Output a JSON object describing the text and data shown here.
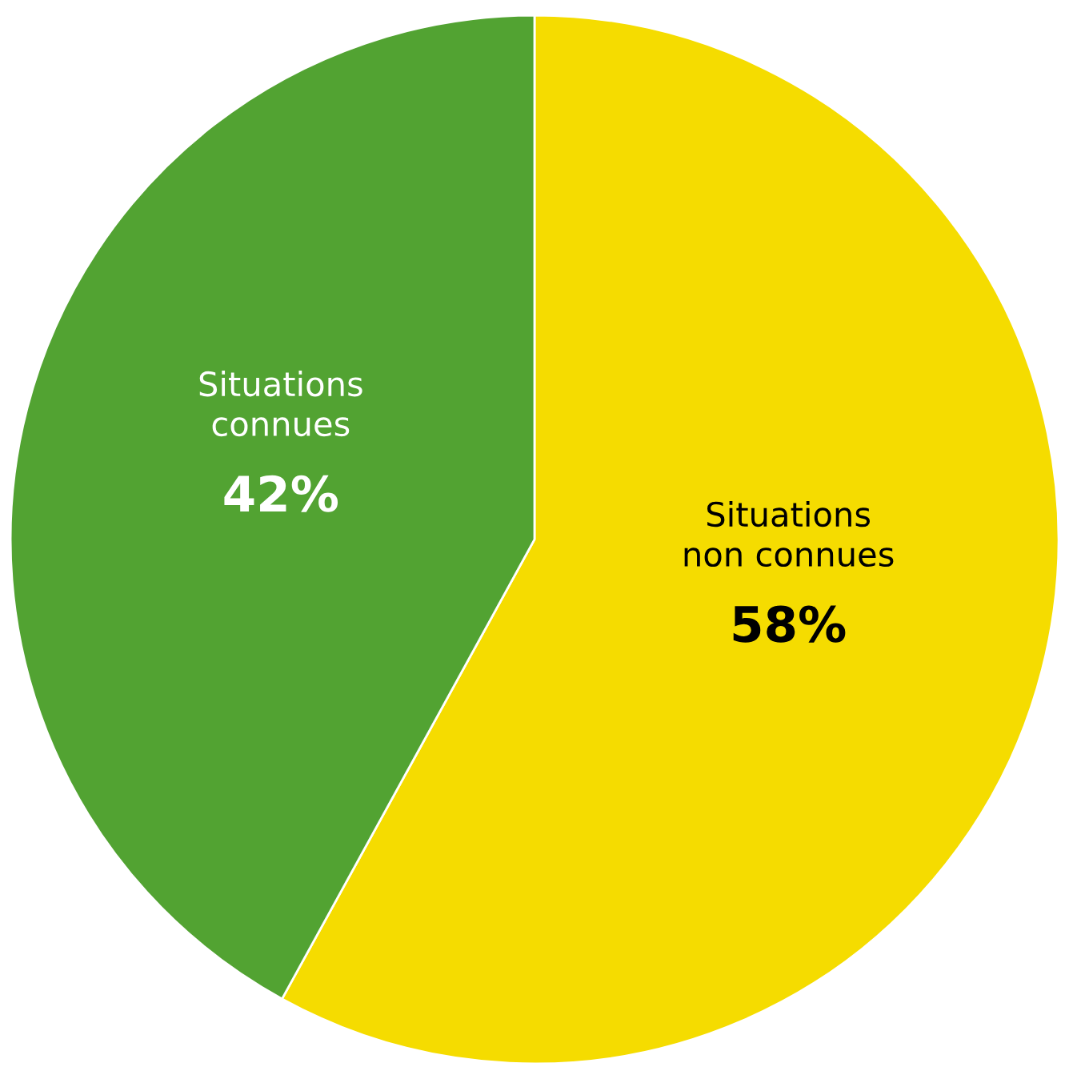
{
  "chart_data": {
    "type": "pie",
    "categories": [
      "Situations\nnon connues",
      "Situations\nconnues"
    ],
    "values": [
      58,
      42
    ],
    "value_labels": [
      "58%",
      "42%"
    ],
    "colors": [
      "#f5dc00",
      "#52a332"
    ],
    "legend": false
  }
}
